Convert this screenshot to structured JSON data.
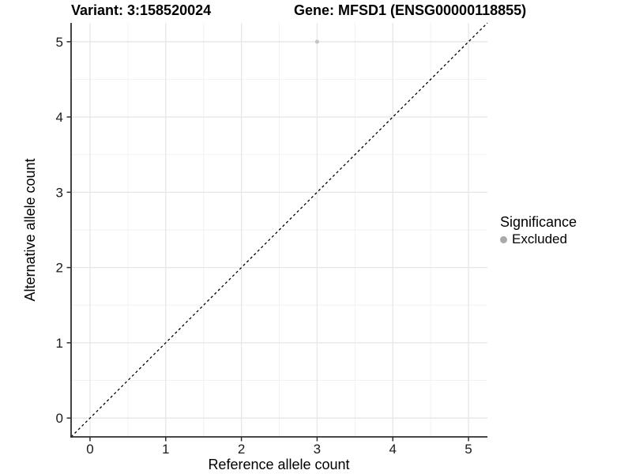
{
  "titles": {
    "left": "Variant: 3:158520024",
    "right": "Gene: MFSD1 (ENSG00000118855)"
  },
  "axes": {
    "x_label": "Reference allele count",
    "y_label": "Alternative allele count"
  },
  "legend": {
    "title": "Significance",
    "entries": [
      {
        "label": "Excluded",
        "color": "#a9a9a9",
        "marker": "circle-icon"
      }
    ]
  },
  "colors": {
    "background": "#ffffff",
    "grid_major": "#e6e6e6",
    "grid_minor": "#f2f2f2",
    "axis_line": "#2e2e2e",
    "tick_mark": "#2e2e2e",
    "tick_label": "#1a1a1a",
    "title_text": "#000000",
    "point": "#c4c4c4",
    "ref_line": "#000000"
  },
  "chart_data": {
    "type": "scatter",
    "title_left": "Variant: 3:158520024",
    "title_right": "Gene: MFSD1 (ENSG00000118855)",
    "xlabel": "Reference allele count",
    "ylabel": "Alternative allele count",
    "xlim": [
      -0.25,
      5.25
    ],
    "ylim": [
      -0.25,
      5.25
    ],
    "x_ticks": [
      0,
      1,
      2,
      3,
      4,
      5
    ],
    "x_tick_labels": [
      "0",
      "1",
      "2",
      "3",
      "4",
      "5"
    ],
    "y_ticks": [
      0,
      1,
      2,
      3,
      4,
      5
    ],
    "y_tick_labels": [
      "0",
      "1",
      "2",
      "3",
      "4",
      "5"
    ],
    "x_minor_ticks": [
      0.5,
      1.5,
      2.5,
      3.5,
      4.5
    ],
    "y_minor_ticks": [
      0.5,
      1.5,
      2.5,
      3.5,
      4.5
    ],
    "grid": "major+minor",
    "legend_position": "right",
    "series": [
      {
        "name": "Excluded",
        "type": "scatter",
        "color": "#c4c4c4",
        "points": [
          {
            "x": 3,
            "y": 5
          }
        ]
      }
    ],
    "reference_line": {
      "description": "identity line y = x",
      "line_style": "dashed",
      "color": "#000000",
      "x0": -0.25,
      "y0": -0.25,
      "x1": 5.25,
      "y1": 5.25
    }
  }
}
